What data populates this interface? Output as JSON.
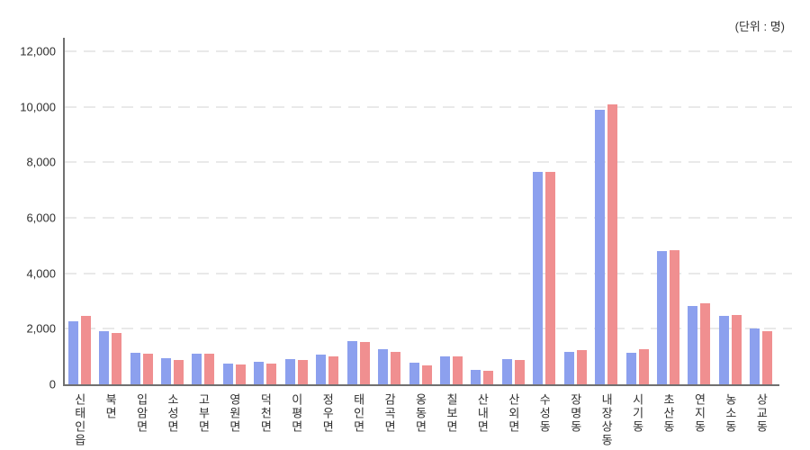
{
  "unit_label": "(단위 : 명)",
  "colors": {
    "series_blue": "#8CA0EE",
    "series_red": "#F08F90",
    "gridline": "#e9e9e9",
    "axis": "#707070",
    "text": "#2f2f2f"
  },
  "chart_data": {
    "type": "bar",
    "title": "",
    "unit_annotation": "(단위 : 명)",
    "legend": "none",
    "grid": "dashed-horizontal",
    "ylim": [
      0,
      12000
    ],
    "ytick_values": [
      0,
      2000,
      4000,
      6000,
      8000,
      10000,
      12000
    ],
    "ytick_labels": [
      "0",
      "2,000",
      "4,000",
      "6,000",
      "8,000",
      "10,000",
      "12,000"
    ],
    "xlabel": "",
    "ylabel": "",
    "categories": [
      "신태인읍",
      "북면",
      "입암면",
      "소성면",
      "고부면",
      "영원면",
      "덕천면",
      "이평면",
      "정우면",
      "태인면",
      "감곡면",
      "옹동면",
      "칠보면",
      "산내면",
      "산외면",
      "수성동",
      "장명동",
      "내장상동",
      "시기동",
      "초산동",
      "연지동",
      "농소동",
      "상교동"
    ],
    "series": [
      {
        "name": "blue",
        "color": "#8CA0EE",
        "values": [
          2280,
          1920,
          1130,
          940,
          1110,
          750,
          820,
          920,
          1060,
          1570,
          1250,
          770,
          1020,
          530,
          920,
          7650,
          1180,
          9900,
          1120,
          4800,
          2820,
          2450,
          2020
        ]
      },
      {
        "name": "red",
        "color": "#F08F90",
        "values": [
          2450,
          1860,
          1100,
          870,
          1090,
          710,
          740,
          880,
          1020,
          1520,
          1160,
          690,
          1000,
          480,
          860,
          7660,
          1220,
          10100,
          1260,
          4820,
          2910,
          2500,
          1900
        ]
      }
    ]
  }
}
